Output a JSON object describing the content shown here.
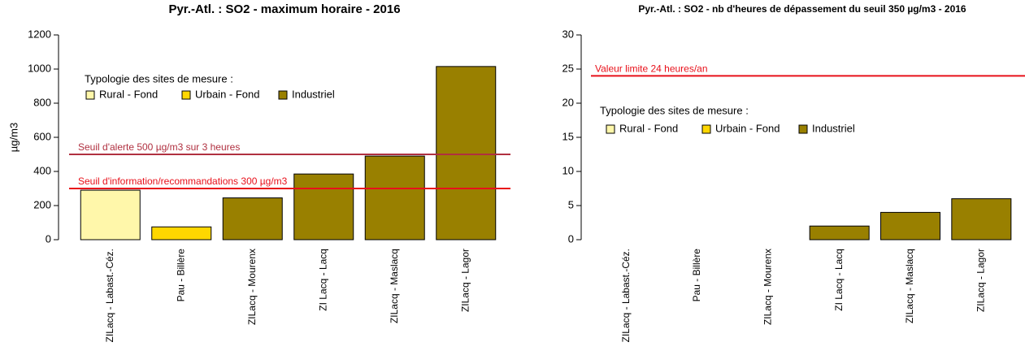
{
  "chart_data": [
    {
      "type": "bar",
      "title": "Pyr.-Atl. : SO2 - maximum horaire - 2016",
      "ylabel": "µg/m3",
      "categories": [
        "ZILacq - Labast.-Céz.",
        "Pau - Billère",
        "ZILacq - Mourenx",
        "ZI Lacq - Lacq",
        "ZILacq - Maslacq",
        "ZILacq - Lagor"
      ],
      "values": [
        290,
        75,
        245,
        385,
        490,
        1015
      ],
      "colors": [
        "#fff7aa",
        "#ffd700",
        "#998000",
        "#998000",
        "#998000",
        "#998000"
      ],
      "ylim": [
        0,
        1200
      ],
      "yticks": [
        0,
        200,
        400,
        600,
        800,
        1000,
        1200
      ],
      "hlines": [
        {
          "value": 500,
          "label": "Seuil d'alerte 500 µg/m3 sur 3 heures",
          "color": "#b03040"
        },
        {
          "value": 300,
          "label": "Seuil d'information/recommandations 300 µg/m3",
          "color": "#e8101a"
        }
      ],
      "legend_title": "Typologie des sites de mesure :",
      "legend": [
        {
          "name": "Rural - Fond",
          "color": "#fff7aa"
        },
        {
          "name": "Urbain - Fond",
          "color": "#ffd700"
        },
        {
          "name": "Industriel",
          "color": "#998000"
        }
      ]
    },
    {
      "type": "bar",
      "title": "Pyr.-Atl. : SO2 - nb d'heures de dépassement du seuil 350 µg/m3 - 2016",
      "categories": [
        "ZILacq - Labast.-Céz.",
        "Pau - Billère",
        "ZILacq - Mourenx",
        "ZI Lacq - Lacq",
        "ZILacq - Maslacq",
        "ZILacq - Lagor"
      ],
      "values": [
        0,
        0,
        0,
        2,
        4,
        6
      ],
      "colors": [
        "#fff7aa",
        "#ffd700",
        "#998000",
        "#998000",
        "#998000",
        "#998000"
      ],
      "ylim": [
        0,
        30
      ],
      "yticks": [
        0,
        5,
        10,
        15,
        20,
        25,
        30
      ],
      "hlines": [
        {
          "value": 24,
          "label": "Valeur limite 24 heures/an",
          "color": "#e8101a"
        }
      ],
      "legend_title": "Typologie des sites de mesure :",
      "legend": [
        {
          "name": "Rural - Fond",
          "color": "#fff7aa"
        },
        {
          "name": "Urbain - Fond",
          "color": "#ffd700"
        },
        {
          "name": "Industriel",
          "color": "#998000"
        }
      ]
    }
  ]
}
